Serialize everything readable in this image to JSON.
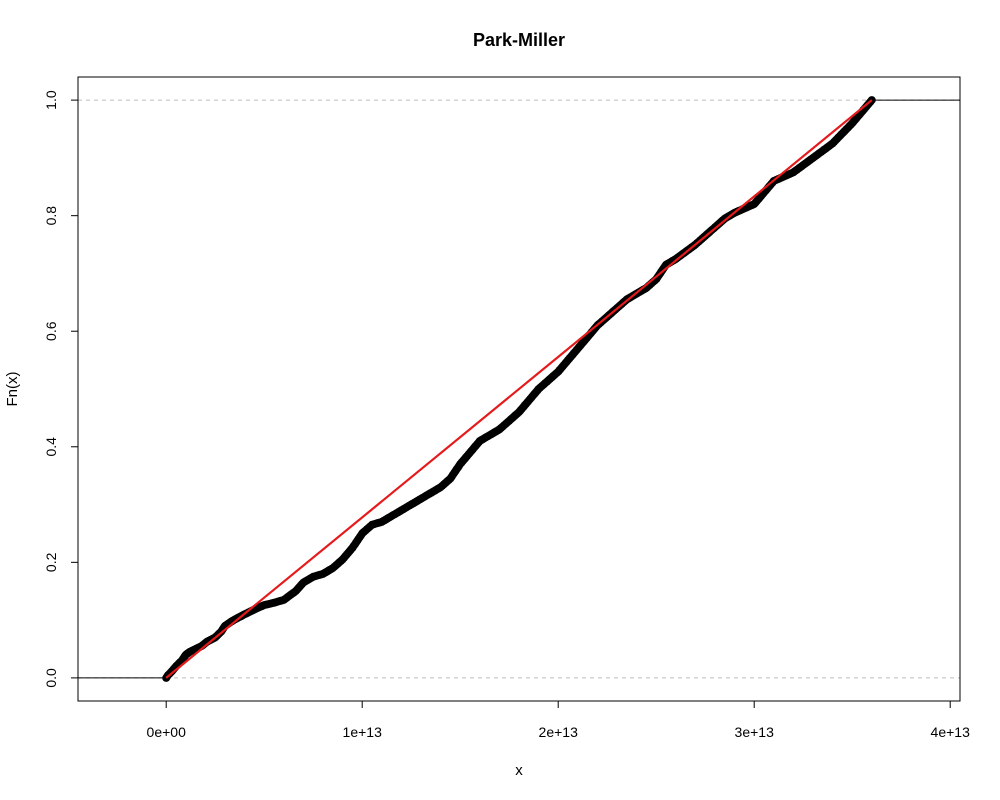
{
  "chart_data": {
    "type": "line",
    "title": "Park-Miller",
    "xlabel": "x",
    "ylabel": "Fn(x)",
    "xlim": [
      -4500000000000.0,
      40500000000000.0
    ],
    "ylim": [
      -0.04,
      1.04
    ],
    "x_ticks": [
      0,
      10000000000000.0,
      20000000000000.0,
      30000000000000.0,
      40000000000000.0
    ],
    "x_tick_labels": [
      "0e+00",
      "1e+13",
      "2e+13",
      "3e+13",
      "4e+13"
    ],
    "y_ticks": [
      0.0,
      0.2,
      0.4,
      0.6,
      0.8,
      1.0
    ],
    "y_tick_labels": [
      "0.0",
      "0.2",
      "0.4",
      "0.6",
      "0.8",
      "1.0"
    ],
    "reference_lines_y": [
      0.0,
      1.0
    ],
    "grid": false,
    "series": [
      {
        "type": "ecdf-steps",
        "color": "#000000",
        "x": [
          0,
          100000000000.0,
          300000000000.0,
          500000000000.0,
          800000000000.0,
          1000000000000.0,
          1200000000000.0,
          1500000000000.0,
          1800000000000.0,
          2100000000000.0,
          2500000000000.0,
          2800000000000.0,
          3000000000000.0,
          3300000000000.0,
          3600000000000.0,
          4000000000000.0,
          4600000000000.0,
          5000000000000.0,
          5500000000000.0,
          6000000000000.0,
          6600000000000.0,
          7000000000000.0,
          7500000000000.0,
          8000000000000.0,
          8500000000000.0,
          9000000000000.0,
          9500000000000.0,
          10000000000000.0,
          10500000000000.0,
          11000000000000.0,
          11500000000000.0,
          12000000000000.0,
          13000000000000.0,
          14000000000000.0,
          14500000000000.0,
          15000000000000.0,
          15500000000000.0,
          16000000000000.0,
          16500000000000.0,
          17000000000000.0,
          17500000000000.0,
          18000000000000.0,
          18500000000000.0,
          19000000000000.0,
          19500000000000.0,
          20000000000000.0,
          20500000000000.0,
          21000000000000.0,
          21500000000000.0,
          22000000000000.0,
          22500000000000.0,
          23000000000000.0,
          23500000000000.0,
          24000000000000.0,
          24500000000000.0,
          25000000000000.0,
          25500000000000.0,
          26000000000000.0,
          27000000000000.0,
          28000000000000.0,
          28500000000000.0,
          29000000000000.0,
          30000000000000.0,
          30500000000000.0,
          31000000000000.0,
          32000000000000.0,
          33000000000000.0,
          34000000000000.0,
          35000000000000.0,
          36000000000000.0
        ],
        "y": [
          0.0,
          0.005,
          0.012,
          0.02,
          0.03,
          0.04,
          0.045,
          0.05,
          0.055,
          0.063,
          0.07,
          0.08,
          0.09,
          0.097,
          0.103,
          0.11,
          0.12,
          0.126,
          0.13,
          0.135,
          0.15,
          0.165,
          0.175,
          0.18,
          0.19,
          0.205,
          0.225,
          0.25,
          0.265,
          0.27,
          0.28,
          0.29,
          0.31,
          0.33,
          0.345,
          0.37,
          0.39,
          0.41,
          0.42,
          0.43,
          0.445,
          0.46,
          0.48,
          0.5,
          0.515,
          0.53,
          0.55,
          0.57,
          0.59,
          0.61,
          0.625,
          0.64,
          0.655,
          0.665,
          0.675,
          0.69,
          0.715,
          0.725,
          0.75,
          0.78,
          0.795,
          0.805,
          0.82,
          0.84,
          0.86,
          0.875,
          0.9,
          0.925,
          0.96,
          1.0
        ]
      },
      {
        "type": "theoretical-cdf",
        "color": "#e41a1c",
        "x": [
          0,
          36000000000000.0
        ],
        "y": [
          0.0,
          1.0
        ]
      }
    ]
  }
}
